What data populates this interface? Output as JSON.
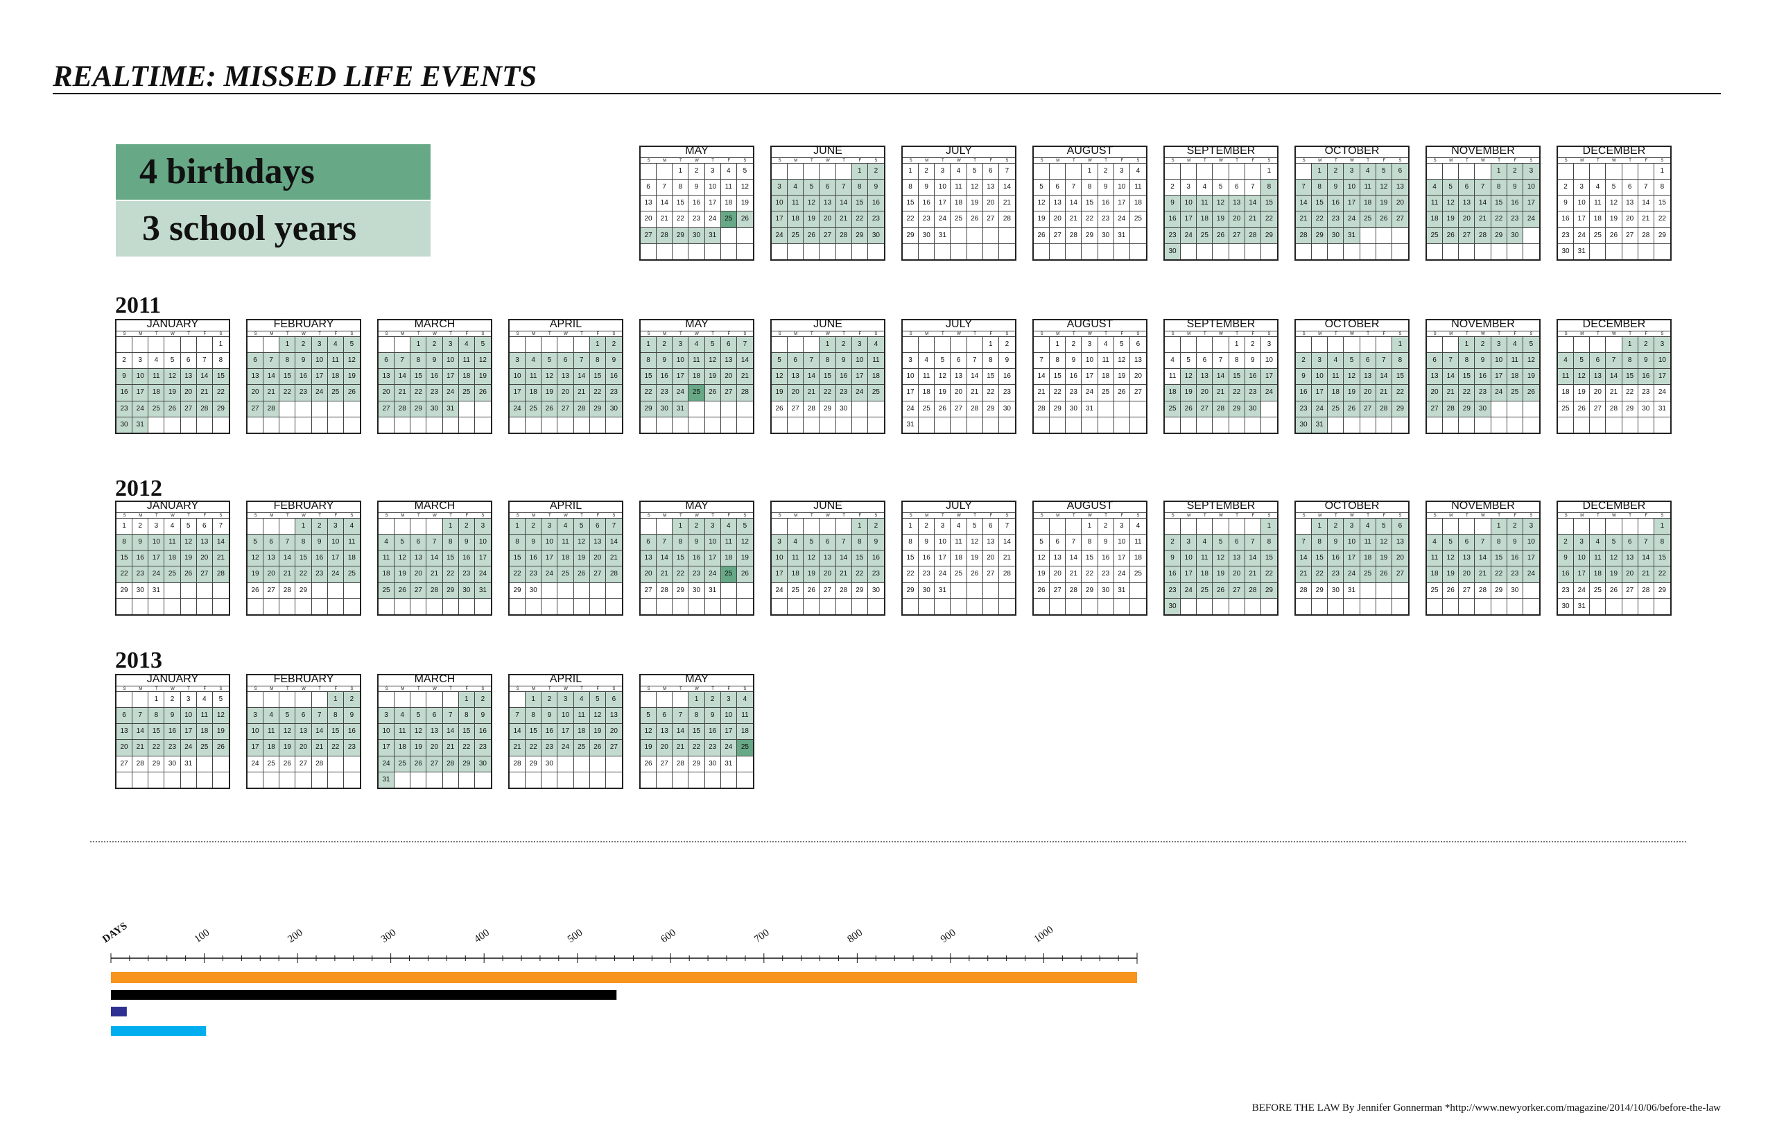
{
  "title": {
    "bold": "REALTIME:",
    "rest": "MISSED LIFE EVENTS"
  },
  "stats": {
    "birthdays": "4 birthdays",
    "school_years": "3 school years"
  },
  "dow_labels": [
    "S",
    "M",
    "T",
    "W",
    "T",
    "F",
    "S"
  ],
  "colors": {
    "missed_day": "#c3dbcf",
    "birthday": "#67a886",
    "bar_orange": "#f7941d",
    "bar_black": "#000000",
    "bar_navy": "#2e3192",
    "bar_cyan": "#00aeef"
  },
  "calendar": {
    "years": [
      {
        "label": "",
        "months": [
          {
            "name": "MAY",
            "days": 31,
            "start": 2,
            "from": 25,
            "to": 31,
            "bday": 25
          },
          {
            "name": "JUNE",
            "days": 30,
            "start": 5,
            "from": 1,
            "to": 30
          },
          {
            "name": "JULY",
            "days": 31,
            "start": 0
          },
          {
            "name": "AUGUST",
            "days": 31,
            "start": 3
          },
          {
            "name": "SEPTEMBER",
            "days": 30,
            "start": 6,
            "from": 8,
            "to": 30
          },
          {
            "name": "OCTOBER",
            "days": 31,
            "start": 1,
            "from": 1,
            "to": 31
          },
          {
            "name": "NOVEMBER",
            "days": 30,
            "start": 4,
            "from": 1,
            "to": 30
          },
          {
            "name": "DECEMBER",
            "days": 31,
            "start": 6
          }
        ]
      },
      {
        "label": "2011",
        "months": [
          {
            "name": "JANUARY",
            "days": 31,
            "start": 6,
            "from": 9,
            "to": 31
          },
          {
            "name": "FEBRUARY",
            "days": 28,
            "start": 2,
            "from": 1,
            "to": 28
          },
          {
            "name": "MARCH",
            "days": 31,
            "start": 2,
            "from": 1,
            "to": 31
          },
          {
            "name": "APRIL",
            "days": 30,
            "start": 5,
            "from": 1,
            "to": 30
          },
          {
            "name": "MAY",
            "days": 31,
            "start": 0,
            "from": 1,
            "to": 31,
            "bday": 25
          },
          {
            "name": "JUNE",
            "days": 30,
            "start": 3,
            "from": 1,
            "to": 25
          },
          {
            "name": "JULY",
            "days": 31,
            "start": 5
          },
          {
            "name": "AUGUST",
            "days": 31,
            "start": 1
          },
          {
            "name": "SEPTEMBER",
            "days": 30,
            "start": 4,
            "from": 12,
            "to": 30
          },
          {
            "name": "OCTOBER",
            "days": 31,
            "start": 6,
            "from": 1,
            "to": 31
          },
          {
            "name": "NOVEMBER",
            "days": 30,
            "start": 2,
            "from": 1,
            "to": 30
          },
          {
            "name": "DECEMBER",
            "days": 31,
            "start": 4,
            "from": 1,
            "to": 17
          }
        ]
      },
      {
        "label": "2012",
        "months": [
          {
            "name": "JANUARY",
            "days": 31,
            "start": 0,
            "from": 8,
            "to": 28
          },
          {
            "name": "FEBRUARY",
            "days": 29,
            "start": 3,
            "from": 1,
            "to": 25
          },
          {
            "name": "MARCH",
            "days": 31,
            "start": 4,
            "from": 1,
            "to": 31
          },
          {
            "name": "APRIL",
            "days": 30,
            "start": 0,
            "from": 1,
            "to": 28
          },
          {
            "name": "MAY",
            "days": 31,
            "start": 2,
            "from": 1,
            "to": 26,
            "bday": 25
          },
          {
            "name": "JUNE",
            "days": 30,
            "start": 5,
            "from": 1,
            "to": 23
          },
          {
            "name": "JULY",
            "days": 31,
            "start": 0
          },
          {
            "name": "AUGUST",
            "days": 31,
            "start": 3
          },
          {
            "name": "SEPTEMBER",
            "days": 30,
            "start": 6,
            "from": 1,
            "to": 30
          },
          {
            "name": "OCTOBER",
            "days": 31,
            "start": 1,
            "from": 1,
            "to": 27
          },
          {
            "name": "NOVEMBER",
            "days": 30,
            "start": 4,
            "from": 1,
            "to": 24
          },
          {
            "name": "DECEMBER",
            "days": 31,
            "start": 6,
            "from": 1,
            "to": 22
          }
        ]
      },
      {
        "label": "2013",
        "months": [
          {
            "name": "JANUARY",
            "days": 31,
            "start": 2,
            "from": 6,
            "to": 26
          },
          {
            "name": "FEBRUARY",
            "days": 28,
            "start": 5,
            "from": 1,
            "to": 23
          },
          {
            "name": "MARCH",
            "days": 31,
            "start": 5,
            "from": 1,
            "to": 31
          },
          {
            "name": "APRIL",
            "days": 30,
            "start": 1,
            "from": 1,
            "to": 27
          },
          {
            "name": "MAY",
            "days": 31,
            "start": 3,
            "from": 1,
            "to": 25,
            "bday": 25
          }
        ]
      }
    ]
  },
  "timeline": {
    "axis_label": "DAYS",
    "tick_labels": [
      "100",
      "200",
      "300",
      "400",
      "500",
      "600",
      "700",
      "800",
      "900",
      "1000"
    ],
    "axis_max": 1100,
    "bars": [
      {
        "days": 1100,
        "color": "#f7941d"
      },
      {
        "days": 542,
        "color": "#000000"
      },
      {
        "days": 17,
        "color": "#2e3192"
      },
      {
        "days": 102,
        "color": "#00aeef"
      }
    ]
  },
  "credit": "BEFORE THE LAW By Jennifer Gonnerman *http://www.newyorker.com/magazine/2014/10/06/before-the-law"
}
